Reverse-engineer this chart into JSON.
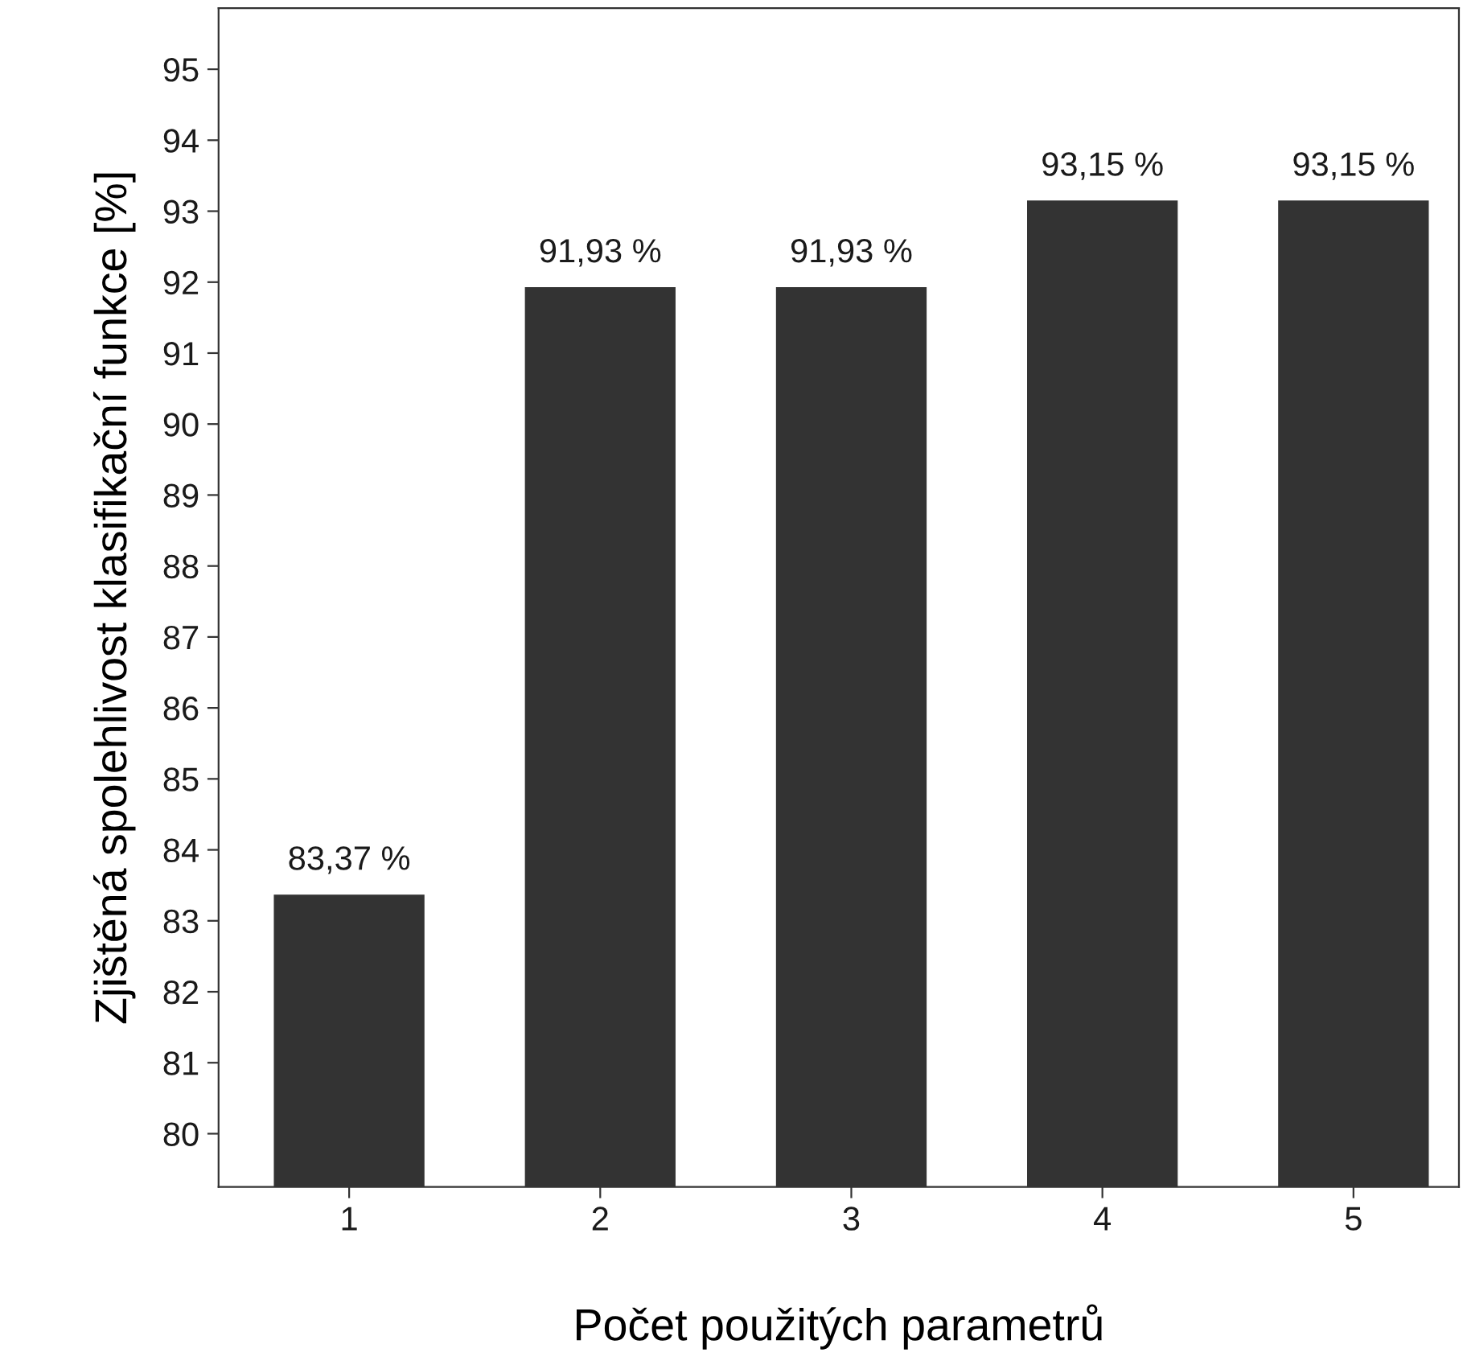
{
  "chart_data": {
    "type": "bar",
    "xlabel": "Počet použitých parametrů",
    "ylabel": "Zjištěná spolehlivost klasifikační funkce [%]",
    "categories": [
      "1",
      "2",
      "3",
      "4",
      "5"
    ],
    "values": [
      83.37,
      91.93,
      91.93,
      93.15,
      93.15
    ],
    "value_labels": [
      "83,37 %",
      "91,93 %",
      "91,93 %",
      "93,15 %",
      "93,15 %"
    ],
    "color": "#333333",
    "ylim": [
      79.25,
      95.86
    ],
    "yticks": [
      80,
      81,
      82,
      83,
      84,
      85,
      86,
      87,
      88,
      89,
      90,
      91,
      92,
      93,
      94,
      95
    ],
    "grid": false
  }
}
